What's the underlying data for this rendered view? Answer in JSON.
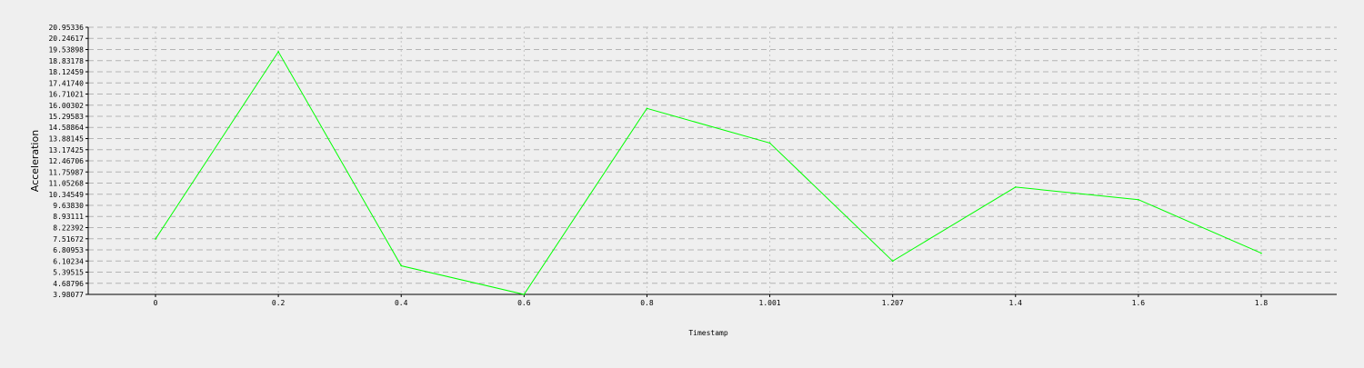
{
  "chart_data": {
    "type": "line",
    "title": "",
    "xlabel": "Timestamp",
    "ylabel": "Acceleration",
    "x": [
      0,
      0.2,
      0.4,
      0.6,
      0.8,
      1.001,
      1.207,
      1.4,
      1.6,
      1.8
    ],
    "x_tick_labels": [
      "0",
      "0.2",
      "0.4",
      "0.6",
      "0.8",
      "1.001",
      "1.207",
      "1.4",
      "1.6",
      "1.8"
    ],
    "series": [
      {
        "values": [
          7.5,
          19.4,
          5.8,
          3.98,
          15.8,
          13.6,
          6.1,
          10.8,
          10.0,
          6.6
        ],
        "color": "#00ff00"
      }
    ],
    "y_ticks": [
      "3.98077",
      "4.68796",
      "5.39515",
      "6.10234",
      "6.80953",
      "7.51672",
      "8.22392",
      "8.93111",
      "9.63830",
      "10.34549",
      "11.05268",
      "11.75987",
      "12.46706",
      "13.17425",
      "13.88145",
      "14.58864",
      "15.29583",
      "16.00302",
      "16.71021",
      "17.41740",
      "18.12459",
      "18.83178",
      "19.53898",
      "20.24617",
      "20.95336"
    ],
    "ylim": [
      3.98077,
      20.95336
    ],
    "grid": true
  }
}
